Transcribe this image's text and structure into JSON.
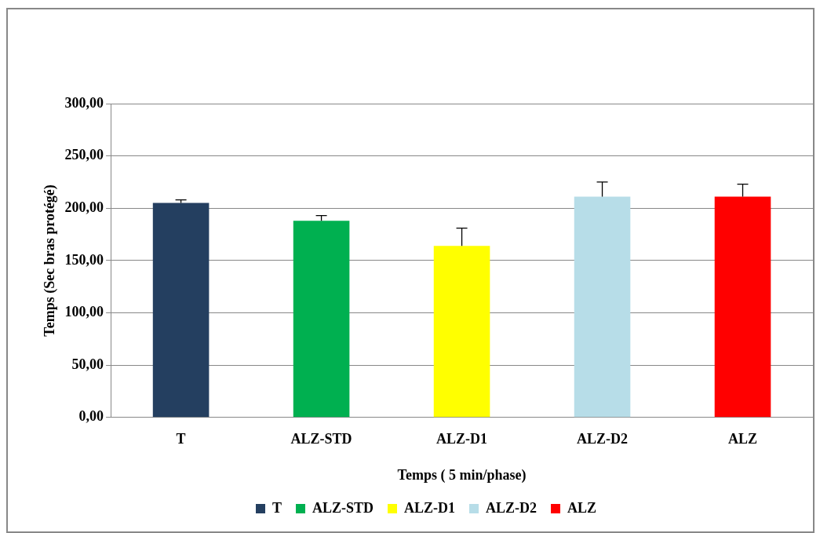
{
  "chart_data": {
    "type": "bar",
    "xlabel": "Temps ( 5 min/phase)",
    "ylabel": "Temps (Sec bras protégé)",
    "categories": [
      "T",
      "ALZ-STD",
      "ALZ-D1",
      "ALZ-D2",
      "ALZ"
    ],
    "series": [
      {
        "name": "T",
        "color": "#243f60",
        "values": [
          205,
          null,
          null,
          null,
          null
        ],
        "errors": [
          [
            205,
            208
          ],
          null,
          null,
          null,
          null
        ]
      },
      {
        "name": "ALZ-STD",
        "color": "#00b050",
        "values": [
          null,
          188,
          null,
          null,
          null
        ],
        "errors": [
          null,
          [
            188,
            193
          ],
          null,
          null,
          null
        ]
      },
      {
        "name": "ALZ-D1",
        "color": "#ffff00",
        "values": [
          null,
          null,
          164,
          null,
          null
        ],
        "errors": [
          null,
          null,
          [
            164,
            181
          ],
          null,
          null
        ]
      },
      {
        "name": "ALZ-D2",
        "color": "#b7dde8",
        "values": [
          null,
          null,
          null,
          211,
          null
        ],
        "errors": [
          null,
          null,
          null,
          [
            211,
            225
          ],
          null
        ]
      },
      {
        "name": "ALZ",
        "color": "#ff0000",
        "values": [
          null,
          null,
          null,
          null,
          211
        ],
        "errors": [
          null,
          null,
          null,
          null,
          [
            211,
            223
          ]
        ]
      }
    ],
    "ylim": [
      0,
      300
    ],
    "yticks": [
      {
        "value": 0,
        "label": "0,00"
      },
      {
        "value": 50,
        "label": "50,00"
      },
      {
        "value": 100,
        "label": "100,00"
      },
      {
        "value": 150,
        "label": "150,00"
      },
      {
        "value": 200,
        "label": "200,00"
      },
      {
        "value": 250,
        "label": "250,00"
      },
      {
        "value": 300,
        "label": "300,00"
      }
    ],
    "grid": "y",
    "legend": "bottom"
  }
}
